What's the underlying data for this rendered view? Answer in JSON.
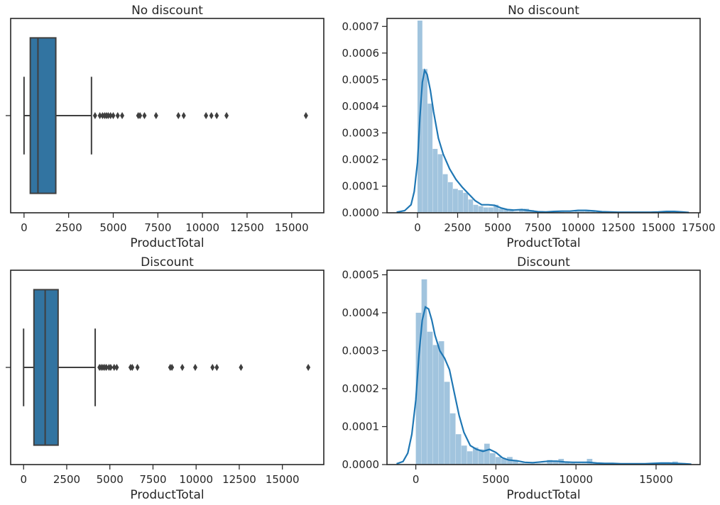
{
  "chart_data": [
    {
      "type": "box",
      "title": "No discount",
      "xlabel": "ProductTotal",
      "ylabel": "",
      "xlim": [
        -750,
        16800
      ],
      "xticks": [
        0,
        2500,
        5000,
        7500,
        10000,
        12500,
        15000
      ],
      "xtick_labels": [
        "0",
        "2500",
        "5000",
        "7500",
        "10000",
        "12500",
        "15000"
      ],
      "box": {
        "whisker_low": 0,
        "q1": 350,
        "median": 780,
        "q3": 1780,
        "whisker_high": 3780
      },
      "outliers": [
        3980,
        4250,
        4400,
        4520,
        4620,
        4720,
        4850,
        5000,
        5250,
        5500,
        6400,
        6500,
        6750,
        7400,
        8650,
        8950,
        10200,
        10500,
        10800,
        11350,
        15800
      ],
      "color": "#3274a1"
    },
    {
      "type": "histogram",
      "title": "No discount",
      "xlabel": "ProductTotal",
      "ylabel": "",
      "xlim": [
        -1900,
        17600
      ],
      "ylim": [
        0,
        0.00073
      ],
      "xticks": [
        0,
        2500,
        5000,
        7500,
        10000,
        12500,
        15000,
        17500
      ],
      "xtick_labels": [
        "0",
        "2500",
        "5000",
        "7500",
        "10000",
        "12500",
        "15000",
        "17500"
      ],
      "yticks": [
        0,
        0.0001,
        0.0002,
        0.0003,
        0.0004,
        0.0005,
        0.0006,
        0.0007
      ],
      "ytick_labels": [
        "0.0000",
        "0.0001",
        "0.0002",
        "0.0003",
        "0.0004",
        "0.0005",
        "0.0006",
        "0.0007"
      ],
      "bins": {
        "start": 0,
        "width": 316,
        "densities": [
          0.000722,
          0.00054,
          0.00041,
          0.00024,
          0.00022,
          0.000145,
          0.000115,
          9e-05,
          8.5e-05,
          7.5e-05,
          5e-05,
          3e-05,
          2.5e-05,
          2e-05,
          2e-05,
          3e-05,
          1.5e-05,
          1.2e-05,
          8e-06,
          5e-06,
          1.2e-05,
          1.5e-05,
          1e-05,
          4e-06,
          4e-06,
          4e-06,
          3e-06,
          2e-06,
          3e-06,
          2e-06,
          3e-06,
          5e-06,
          5e-06,
          6e-06,
          4e-06,
          2e-06,
          2e-06,
          3e-06,
          2e-06,
          1e-06,
          1e-06,
          1e-06,
          1e-06,
          1e-06,
          1e-06,
          1e-06,
          1e-06,
          1e-06,
          2e-06,
          3e-06
        ]
      },
      "kde": {
        "x": [
          -1300,
          -800,
          -400,
          -200,
          0,
          150,
          300,
          450,
          600,
          800,
          1000,
          1300,
          1600,
          2000,
          2400,
          2800,
          3200,
          3600,
          4000,
          4400,
          4800,
          5200,
          5600,
          6000,
          6500,
          7000,
          7500,
          8000,
          8500,
          9000,
          9500,
          10000,
          10500,
          11000,
          11500,
          12000,
          12500,
          13000,
          13500,
          14000,
          14500,
          15000,
          15500,
          16000,
          16500,
          16900
        ],
        "y": [
          2e-06,
          8e-06,
          3e-05,
          8e-05,
          0.00019,
          0.00036,
          0.00049,
          0.000535,
          0.00052,
          0.00046,
          0.00038,
          0.00028,
          0.00022,
          0.000165,
          0.000125,
          9.5e-05,
          7e-05,
          4.5e-05,
          3e-05,
          3e-05,
          2.8e-05,
          1.8e-05,
          1.2e-05,
          1e-05,
          1.2e-05,
          8e-06,
          4e-06,
          3e-06,
          5e-06,
          6e-06,
          6e-06,
          9e-06,
          9e-06,
          7e-06,
          4e-06,
          3e-06,
          2e-06,
          2e-06,
          2e-06,
          2e-06,
          2e-06,
          3e-06,
          5e-06,
          5e-06,
          3e-06,
          1e-06
        ]
      },
      "bar_color": "#a1c4de",
      "line_color": "#1f77b4"
    },
    {
      "type": "box",
      "title": "Discount",
      "xlabel": "ProductTotal",
      "ylabel": "",
      "xlim": [
        -750,
        17400
      ],
      "xticks": [
        0,
        2500,
        5000,
        7500,
        10000,
        12500,
        15000
      ],
      "xtick_labels": [
        "0",
        "2500",
        "5000",
        "7500",
        "10000",
        "12500",
        "15000"
      ],
      "box": {
        "whisker_low": 0,
        "q1": 600,
        "median": 1250,
        "q3": 2000,
        "whisker_high": 4150
      },
      "outliers": [
        4400,
        4500,
        4600,
        4700,
        4800,
        4950,
        5050,
        5250,
        5400,
        6200,
        6300,
        6600,
        8500,
        8600,
        9200,
        9950,
        10950,
        11200,
        12600,
        16500
      ],
      "color": "#3274a1"
    },
    {
      "type": "histogram",
      "title": "Discount",
      "xlabel": "ProductTotal",
      "ylabel": "",
      "xlim": [
        -1800,
        17750
      ],
      "ylim": [
        0,
        0.000512
      ],
      "xticks": [
        0,
        5000,
        10000,
        15000
      ],
      "xtick_labels": [
        "0",
        "5000",
        "10000",
        "15000"
      ],
      "yticks": [
        0,
        0.0001,
        0.0002,
        0.0003,
        0.0004,
        0.0005
      ],
      "ytick_labels": [
        "0.0000",
        "0.0001",
        "0.0002",
        "0.0003",
        "0.0004",
        "0.0005"
      ],
      "bins": {
        "start": 0,
        "width": 356,
        "densities": [
          0.0004,
          0.000488,
          0.00035,
          0.000315,
          0.000325,
          0.000218,
          0.000135,
          8e-05,
          5e-05,
          3.5e-05,
          4.5e-05,
          4e-05,
          5.5e-05,
          3e-05,
          2e-05,
          1.5e-05,
          2e-05,
          1e-05,
          4e-06,
          3e-06,
          3e-06,
          3e-06,
          3e-06,
          1.2e-05,
          1e-05,
          1.5e-05,
          8e-06,
          4e-06,
          3e-06,
          3e-06,
          1.5e-05,
          5e-06,
          2e-06,
          2e-06,
          3e-06,
          2e-06,
          2e-06,
          2e-06,
          2e-06,
          2e-06,
          2e-06,
          2e-06,
          2e-06,
          2e-06,
          2e-06,
          8e-06
        ]
      },
      "kde": {
        "x": [
          -1200,
          -800,
          -500,
          -250,
          0,
          200,
          400,
          600,
          800,
          1000,
          1200,
          1500,
          1800,
          2100,
          2400,
          2700,
          3000,
          3400,
          3800,
          4200,
          4600,
          5000,
          5400,
          5800,
          6300,
          6800,
          7300,
          7800,
          8300,
          8800,
          9300,
          9800,
          10300,
          10800,
          11300,
          11800,
          12300,
          12800,
          13300,
          13800,
          14300,
          14800,
          15300,
          15800,
          16300,
          16800,
          17200
        ],
        "y": [
          2e-06,
          8e-06,
          3e-05,
          8e-05,
          0.00017,
          0.00029,
          0.00038,
          0.000415,
          0.00041,
          0.00038,
          0.00034,
          0.0003,
          0.00028,
          0.00025,
          0.00019,
          0.00013,
          8.5e-05,
          5e-05,
          4e-05,
          3.5e-05,
          4e-05,
          3.2e-05,
          1.8e-05,
          1.2e-05,
          1e-05,
          6e-06,
          5e-06,
          7e-06,
          9e-06,
          9e-06,
          7e-06,
          6e-06,
          6e-06,
          6e-06,
          4e-06,
          3e-06,
          3e-06,
          2e-06,
          2e-06,
          2e-06,
          2e-06,
          3e-06,
          4e-06,
          4e-06,
          3e-06,
          2e-06,
          1e-06
        ]
      },
      "bar_color": "#a1c4de",
      "line_color": "#1f77b4"
    }
  ]
}
